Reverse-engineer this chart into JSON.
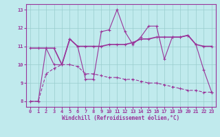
{
  "xlabel": "Windchill (Refroidissement éolien,°C)",
  "xlim": [
    -0.5,
    23.5
  ],
  "ylim": [
    7.7,
    13.3
  ],
  "yticks": [
    8,
    9,
    10,
    11,
    12,
    13
  ],
  "xticks": [
    0,
    1,
    2,
    3,
    4,
    5,
    6,
    7,
    8,
    9,
    10,
    11,
    12,
    13,
    14,
    15,
    16,
    17,
    18,
    19,
    20,
    21,
    22,
    23
  ],
  "background_color": "#c0eaed",
  "line_color": "#993399",
  "grid_color": "#99cccc",
  "line1_y": [
    8.0,
    8.0,
    10.9,
    10.0,
    10.0,
    11.4,
    11.0,
    9.2,
    9.2,
    11.8,
    11.9,
    13.0,
    11.8,
    11.1,
    11.5,
    12.1,
    12.1,
    10.3,
    11.5,
    11.5,
    11.6,
    11.1,
    9.7,
    8.5
  ],
  "line2_y": [
    10.9,
    10.9,
    10.9,
    10.9,
    10.0,
    11.4,
    11.0,
    11.0,
    11.0,
    11.0,
    11.1,
    11.1,
    11.1,
    11.2,
    11.4,
    11.4,
    11.5,
    11.5,
    11.5,
    11.5,
    11.6,
    11.1,
    11.0,
    11.0
  ],
  "line3_y": [
    8.0,
    8.0,
    9.5,
    9.8,
    10.0,
    10.0,
    9.9,
    9.5,
    9.5,
    9.4,
    9.3,
    9.3,
    9.2,
    9.2,
    9.1,
    9.0,
    9.0,
    8.9,
    8.8,
    8.7,
    8.6,
    8.6,
    8.5,
    8.5
  ]
}
